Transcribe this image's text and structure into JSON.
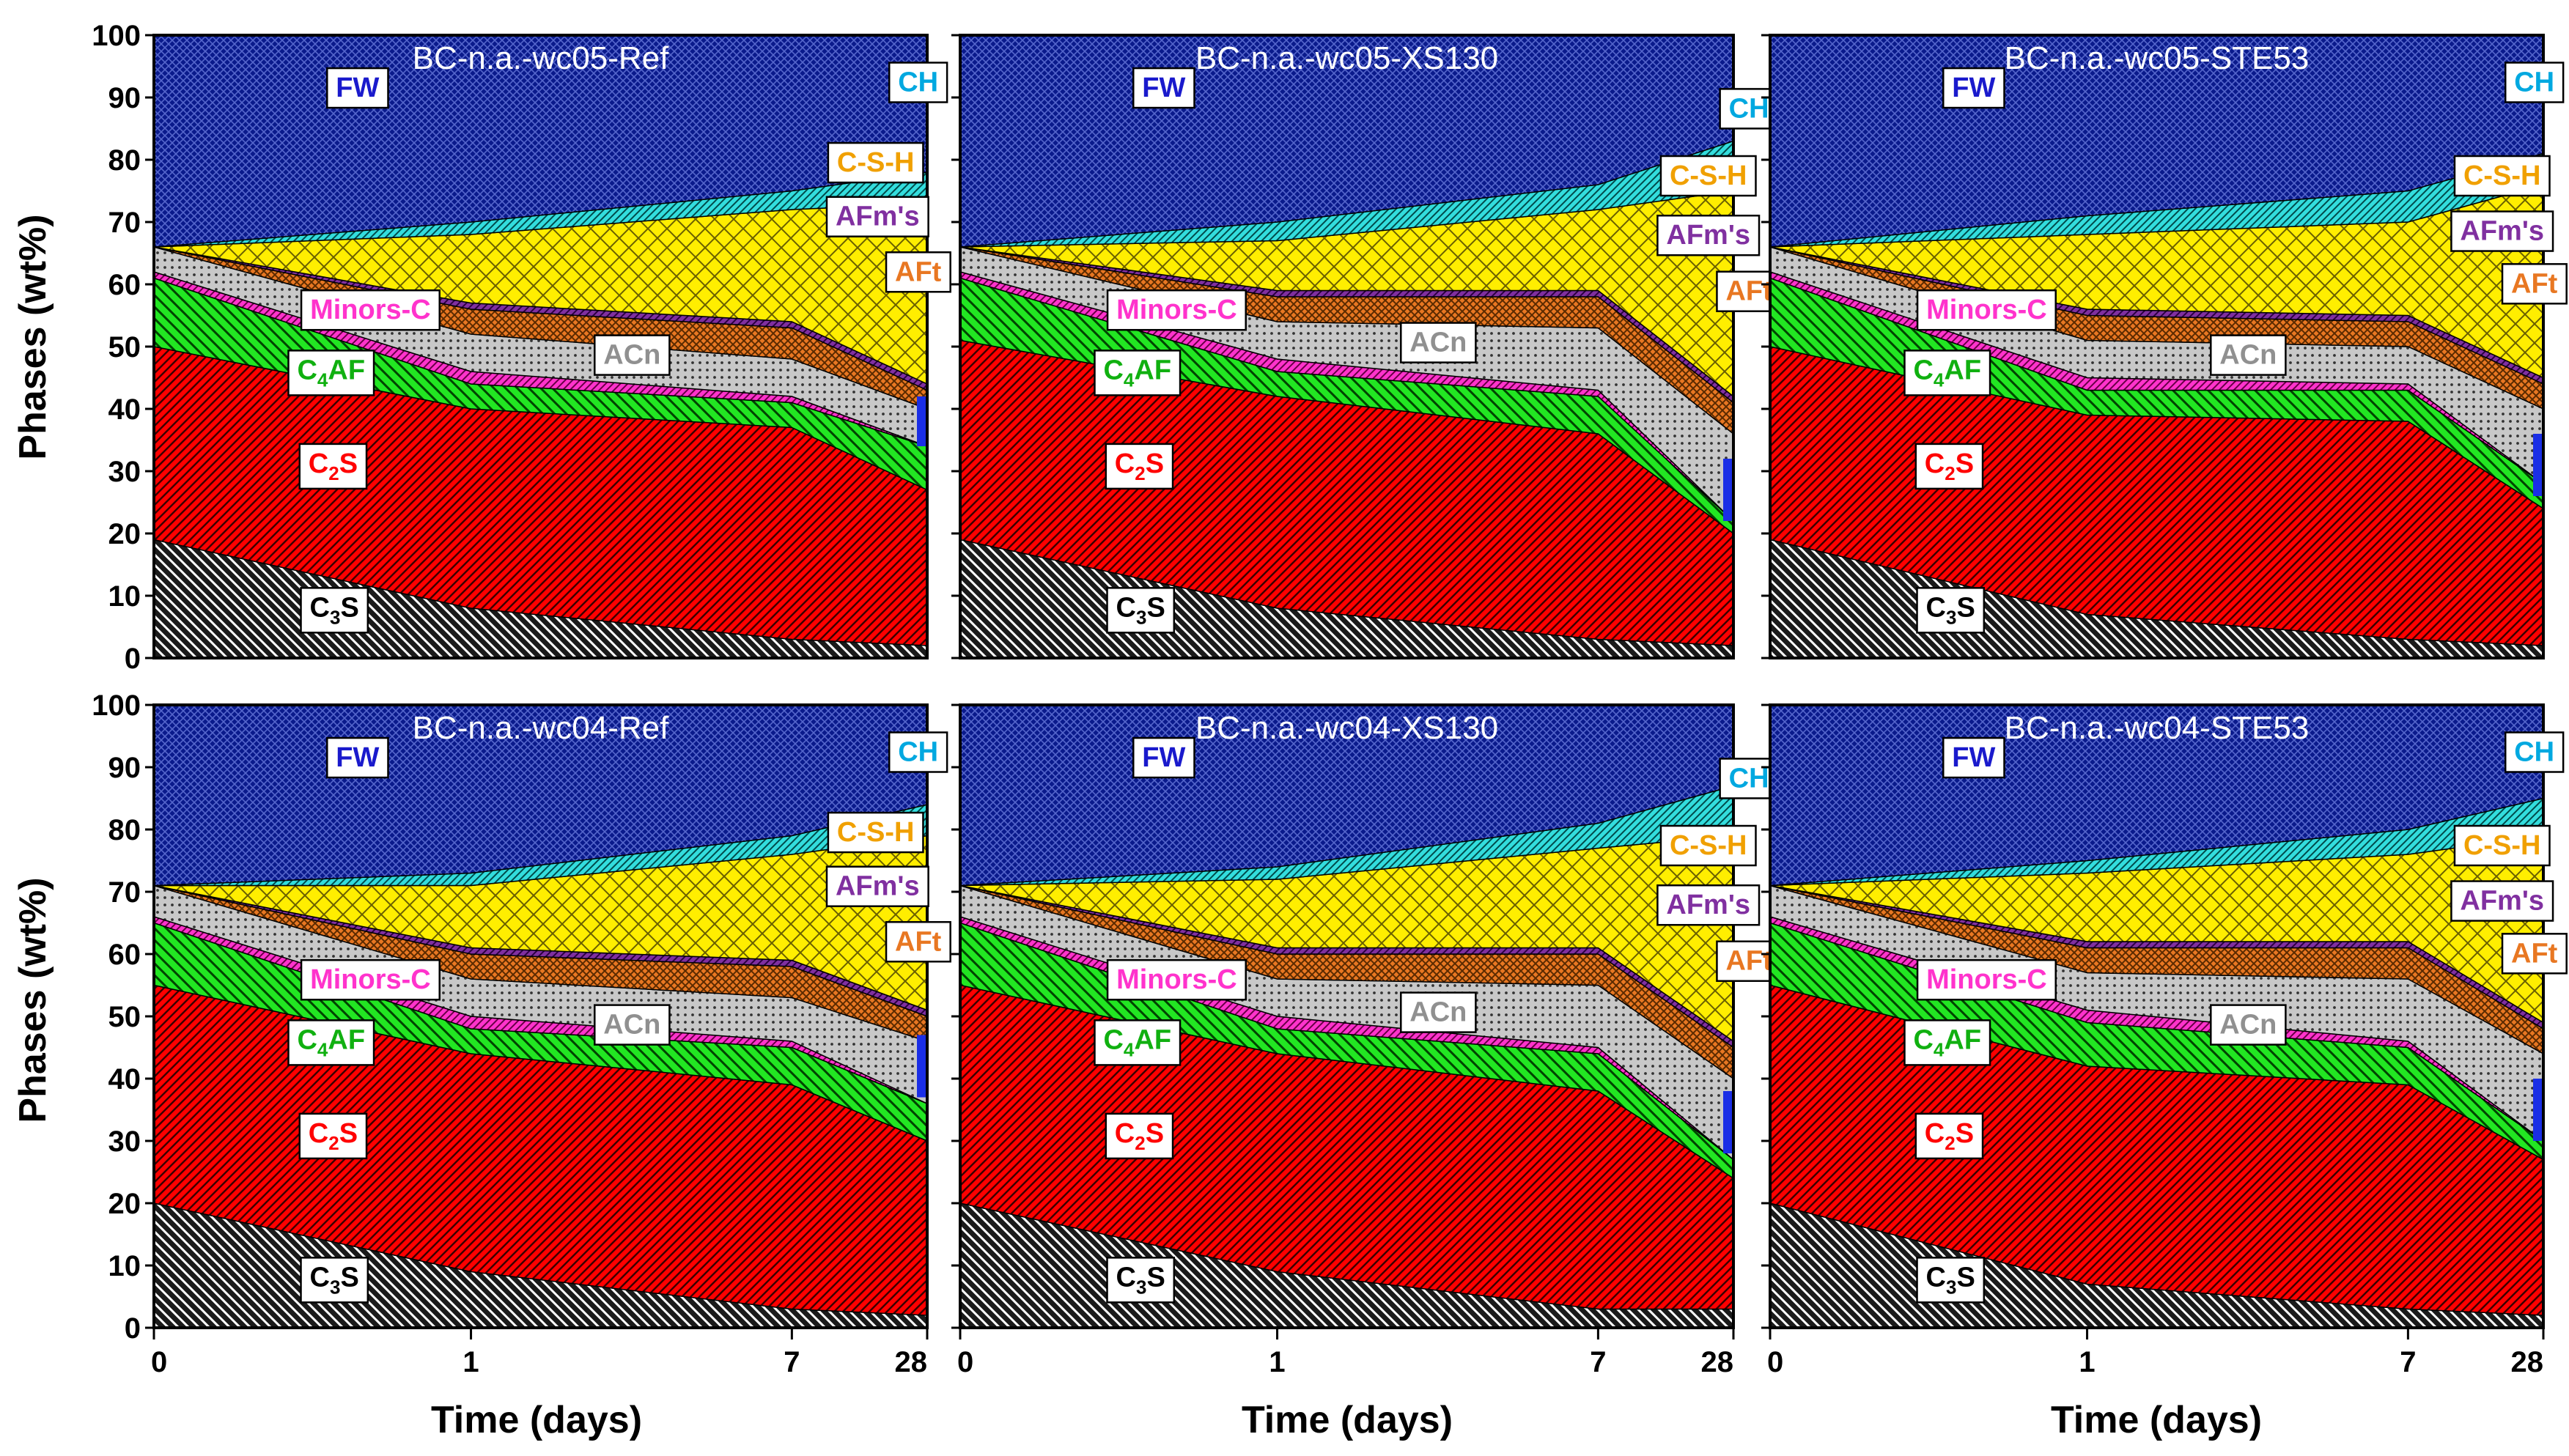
{
  "figure": {
    "ylabel": "Phases (wt%)",
    "xlabel": "Time (days)"
  },
  "chart_data": {
    "type": "area",
    "title": "",
    "xlabel": "Time (days)",
    "ylabel": "Phases (wt%)",
    "ylim": [
      0,
      100
    ],
    "yticks": [
      0,
      10,
      20,
      30,
      40,
      50,
      60,
      70,
      80,
      90,
      100
    ],
    "xticks": [
      {
        "pos": 0,
        "label": "0"
      },
      {
        "pos": 1,
        "label": "1"
      },
      {
        "pos": 2,
        "label": "7"
      },
      {
        "pos": 3,
        "label": "28"
      }
    ],
    "phase_order": [
      "C3S",
      "C2S",
      "C4AF",
      "Minors-C",
      "ACn",
      "AFt",
      "AFm's",
      "C-S-H",
      "CH",
      "FW"
    ],
    "phase_labels": {
      "FW": "FW",
      "CH": "CH",
      "C-S-H": "C-S-H",
      "AFm's": "AFm's",
      "AFt": "AFt",
      "ACn": "ACn",
      "Minors-C": "Minors-C",
      "C4AF": "C4AF",
      "C2S": "C2S",
      "C3S": "C3S"
    },
    "phase_colors": {
      "C3S": "#1a1a1a",
      "C2S": "#ff0000",
      "C4AF": "#22e622",
      "Minors-C": "#ff33cc",
      "ACn": "#c8c8c8",
      "AFt": "#e87722",
      "AFm's": "#8030a0",
      "C-S-H": "#ffee00",
      "CH": "#33dddd",
      "FW": "#0a1a8c",
      "Gap": "#1a2ee6"
    },
    "label_colors": {
      "FW": "#1a1acc",
      "CH": "#00a8e0",
      "C-S-H": "#f0a000",
      "AFm's": "#8030a0",
      "AFt": "#e87722",
      "ACn": "#909090",
      "Minors-C": "#ff33cc",
      "C4AF": "#10b010",
      "C2S": "#ff0000",
      "C3S": "#000000"
    },
    "panels": [
      {
        "title": "BC-n.a.-wc05-Ref",
        "x": [
          0,
          1,
          2,
          3
        ],
        "series": [
          {
            "name": "C3S",
            "values": [
              19,
              8,
              3,
              2
            ]
          },
          {
            "name": "C2S",
            "values": [
              31,
              32,
              34,
              25
            ]
          },
          {
            "name": "C4AF",
            "values": [
              11,
              4,
              4,
              7
            ]
          },
          {
            "name": "Minors-C",
            "values": [
              1,
              2,
              1,
              0
            ]
          },
          {
            "name": "ACn",
            "values": [
              4,
              6,
              6,
              6
            ]
          },
          {
            "name": "AFt",
            "values": [
              0,
              4,
              5,
              3
            ]
          },
          {
            "name": "AFm's",
            "values": [
              0,
              1,
              1,
              1
            ]
          },
          {
            "name": "C-S-H",
            "values": [
              0,
              11,
              18,
              29
            ]
          },
          {
            "name": "CH",
            "values": [
              0,
              2,
              3,
              5
            ]
          },
          {
            "name": "FW",
            "values": [
              34,
              30,
              25,
              22
            ]
          }
        ],
        "gap": [
          34,
          42
        ],
        "labels": {
          "FW": [
            80,
            316,
            89
          ],
          "CH": [
            82,
            1186,
            81
          ],
          "C-S-H": [
            78,
            1120,
            197
          ],
          "AFm's": [
            79,
            1123,
            275
          ],
          "AFt": [
            78,
            1186,
            355
          ],
          "ACn": [
            75,
            742,
            475
          ],
          "Minors-C": [
            99,
            336,
            410
          ],
          "C4AF": [
            97,
            275,
            497
          ],
          "C2S": [
            85,
            278,
            632
          ],
          "C3S": [
            85,
            280,
            840
          ]
        }
      },
      {
        "title": "BC-n.a.-wc05-XS130",
        "x": [
          0,
          1,
          2,
          3
        ],
        "series": [
          {
            "name": "C3S",
            "values": [
              19,
              8,
              3,
              2
            ]
          },
          {
            "name": "C2S",
            "values": [
              32,
              34,
              33,
              18
            ]
          },
          {
            "name": "C4AF",
            "values": [
              10,
              4,
              6,
              2
            ]
          },
          {
            "name": "Minors-C",
            "values": [
              1,
              2,
              1,
              0
            ]
          },
          {
            "name": "ACn",
            "values": [
              4,
              6,
              10,
              14
            ]
          },
          {
            "name": "AFt",
            "values": [
              0,
              4,
              5,
              5
            ]
          },
          {
            "name": "AFm's",
            "values": [
              0,
              1,
              1,
              1
            ]
          },
          {
            "name": "C-S-H",
            "values": [
              0,
              8,
              13,
              33
            ]
          },
          {
            "name": "CH",
            "values": [
              0,
              3,
              4,
              8
            ]
          },
          {
            "name": "FW",
            "values": [
              34,
              30,
              24,
              17
            ]
          }
        ],
        "gap": [
          22,
          32
        ],
        "labels": {
          "FW": [
            80,
            316,
            89
          ],
          "CH": [
            80,
            1224,
            119
          ],
          "C-S-H": [
            78,
            1161,
            216
          ],
          "AFm's": [
            79,
            1161,
            302
          ],
          "AFt": [
            78,
            1224,
            383
          ],
          "ACn": [
            75,
            742,
            457
          ],
          "Minors-C": [
            99,
            336,
            410
          ],
          "C4AF": [
            97,
            275,
            497
          ],
          "C2S": [
            85,
            278,
            632
          ],
          "C3S": [
            85,
            280,
            840
          ]
        }
      },
      {
        "title": "BC-n.a.-wc05-STE53",
        "x": [
          0,
          1,
          2,
          3
        ],
        "series": [
          {
            "name": "C3S",
            "values": [
              19,
              7,
              3,
              2
            ]
          },
          {
            "name": "C2S",
            "values": [
              31,
              32,
              35,
              22
            ]
          },
          {
            "name": "C4AF",
            "values": [
              11,
              4,
              5,
              4
            ]
          },
          {
            "name": "Minors-C",
            "values": [
              1,
              2,
              1,
              0
            ]
          },
          {
            "name": "ACn",
            "values": [
              4,
              6,
              6,
              12
            ]
          },
          {
            "name": "AFt",
            "values": [
              0,
              4,
              4,
              4
            ]
          },
          {
            "name": "AFm's",
            "values": [
              0,
              1,
              1,
              1
            ]
          },
          {
            "name": "C-S-H",
            "values": [
              0,
              12,
              15,
              31
            ]
          },
          {
            "name": "CH",
            "values": [
              0,
              3,
              5,
              5
            ]
          },
          {
            "name": "FW",
            "values": [
              34,
              29,
              25,
              19
            ]
          }
        ],
        "gap": [
          26,
          36
        ],
        "labels": {
          "FW": [
            80,
            316,
            89
          ],
          "CH": [
            82,
            1186,
            81
          ],
          "C-S-H": [
            78,
            1136,
            216
          ],
          "AFm's": [
            79,
            1136,
            296
          ],
          "AFt": [
            78,
            1186,
            372
          ],
          "ACn": [
            75,
            742,
            475
          ],
          "Minors-C": [
            99,
            336,
            410
          ],
          "C4AF": [
            97,
            275,
            497
          ],
          "C2S": [
            85,
            278,
            632
          ],
          "C3S": [
            85,
            280,
            840
          ]
        }
      },
      {
        "title": "BC-n.a.-wc04-Ref",
        "x": [
          0,
          1,
          2,
          3
        ],
        "series": [
          {
            "name": "C3S",
            "values": [
              20,
              9,
              3,
              2
            ]
          },
          {
            "name": "C2S",
            "values": [
              35,
              35,
              36,
              28
            ]
          },
          {
            "name": "C4AF",
            "values": [
              10,
              4,
              6,
              6
            ]
          },
          {
            "name": "Minors-C",
            "values": [
              1,
              2,
              1,
              0
            ]
          },
          {
            "name": "ACn",
            "values": [
              5,
              6,
              7,
              10
            ]
          },
          {
            "name": "AFt",
            "values": [
              0,
              4,
              5,
              4
            ]
          },
          {
            "name": "AFm's",
            "values": [
              0,
              1,
              1,
              1
            ]
          },
          {
            "name": "C-S-H",
            "values": [
              0,
              10,
              17,
              28
            ]
          },
          {
            "name": "CH",
            "values": [
              0,
              2,
              3,
              5
            ]
          },
          {
            "name": "FW",
            "values": [
              29,
              27,
              21,
              16
            ]
          }
        ],
        "gap": [
          37,
          47
        ],
        "labels": {
          "FW": [
            80,
            316,
            89
          ],
          "CH": [
            82,
            1186,
            81
          ],
          "C-S-H": [
            78,
            1120,
            197
          ],
          "AFm's": [
            79,
            1123,
            275
          ],
          "AFt": [
            78,
            1186,
            355
          ],
          "ACn": [
            75,
            742,
            475
          ],
          "Minors-C": [
            99,
            336,
            410
          ],
          "C4AF": [
            97,
            275,
            497
          ],
          "C2S": [
            85,
            278,
            632
          ],
          "C3S": [
            85,
            280,
            840
          ]
        }
      },
      {
        "title": "BC-n.a.-wc04-XS130",
        "x": [
          0,
          1,
          2,
          3
        ],
        "series": [
          {
            "name": "C3S",
            "values": [
              20,
              9,
              3,
              3
            ]
          },
          {
            "name": "C2S",
            "values": [
              35,
              35,
              35,
              21
            ]
          },
          {
            "name": "C4AF",
            "values": [
              10,
              4,
              6,
              3
            ]
          },
          {
            "name": "Minors-C",
            "values": [
              1,
              2,
              1,
              0
            ]
          },
          {
            "name": "ACn",
            "values": [
              5,
              6,
              10,
              13
            ]
          },
          {
            "name": "AFt",
            "values": [
              0,
              4,
              5,
              5
            ]
          },
          {
            "name": "AFm's",
            "values": [
              0,
              1,
              1,
              1
            ]
          },
          {
            "name": "C-S-H",
            "values": [
              0,
              11,
              16,
              33
            ]
          },
          {
            "name": "CH",
            "values": [
              0,
              2,
              4,
              8
            ]
          },
          {
            "name": "FW",
            "values": [
              29,
              26,
              19,
              13
            ]
          }
        ],
        "gap": [
          28,
          38
        ],
        "labels": {
          "FW": [
            80,
            316,
            89
          ],
          "CH": [
            80,
            1224,
            119
          ],
          "C-S-H": [
            78,
            1161,
            216
          ],
          "AFm's": [
            79,
            1161,
            302
          ],
          "AFt": [
            78,
            1224,
            383
          ],
          "ACn": [
            75,
            742,
            457
          ],
          "Minors-C": [
            99,
            336,
            410
          ],
          "C4AF": [
            97,
            275,
            497
          ],
          "C2S": [
            85,
            278,
            632
          ],
          "C3S": [
            85,
            280,
            840
          ]
        }
      },
      {
        "title": "BC-n.a.-wc04-STE53",
        "x": [
          0,
          1,
          2,
          3
        ],
        "series": [
          {
            "name": "C3S",
            "values": [
              20,
              7,
              3,
              2
            ]
          },
          {
            "name": "C2S",
            "values": [
              35,
              35,
              36,
              25
            ]
          },
          {
            "name": "C4AF",
            "values": [
              10,
              7,
              6,
              3
            ]
          },
          {
            "name": "Minors-C",
            "values": [
              1,
              2,
              1,
              0
            ]
          },
          {
            "name": "ACn",
            "values": [
              5,
              6,
              10,
              14
            ]
          },
          {
            "name": "AFt",
            "values": [
              0,
              4,
              5,
              4
            ]
          },
          {
            "name": "AFm's",
            "values": [
              0,
              1,
              1,
              1
            ]
          },
          {
            "name": "C-S-H",
            "values": [
              0,
              11,
              14,
              30
            ]
          },
          {
            "name": "CH",
            "values": [
              0,
              2,
              4,
              6
            ]
          },
          {
            "name": "FW",
            "values": [
              29,
              25,
              20,
              15
            ]
          }
        ],
        "gap": [
          30,
          40
        ],
        "labels": {
          "FW": [
            80,
            316,
            89
          ],
          "CH": [
            82,
            1186,
            81
          ],
          "C-S-H": [
            78,
            1136,
            216
          ],
          "AFm's": [
            79,
            1136,
            296
          ],
          "AFt": [
            78,
            1186,
            372
          ],
          "ACn": [
            75,
            742,
            475
          ],
          "Minors-C": [
            99,
            336,
            410
          ],
          "C4AF": [
            97,
            275,
            497
          ],
          "C2S": [
            85,
            278,
            632
          ],
          "C3S": [
            85,
            280,
            840
          ]
        }
      }
    ]
  }
}
